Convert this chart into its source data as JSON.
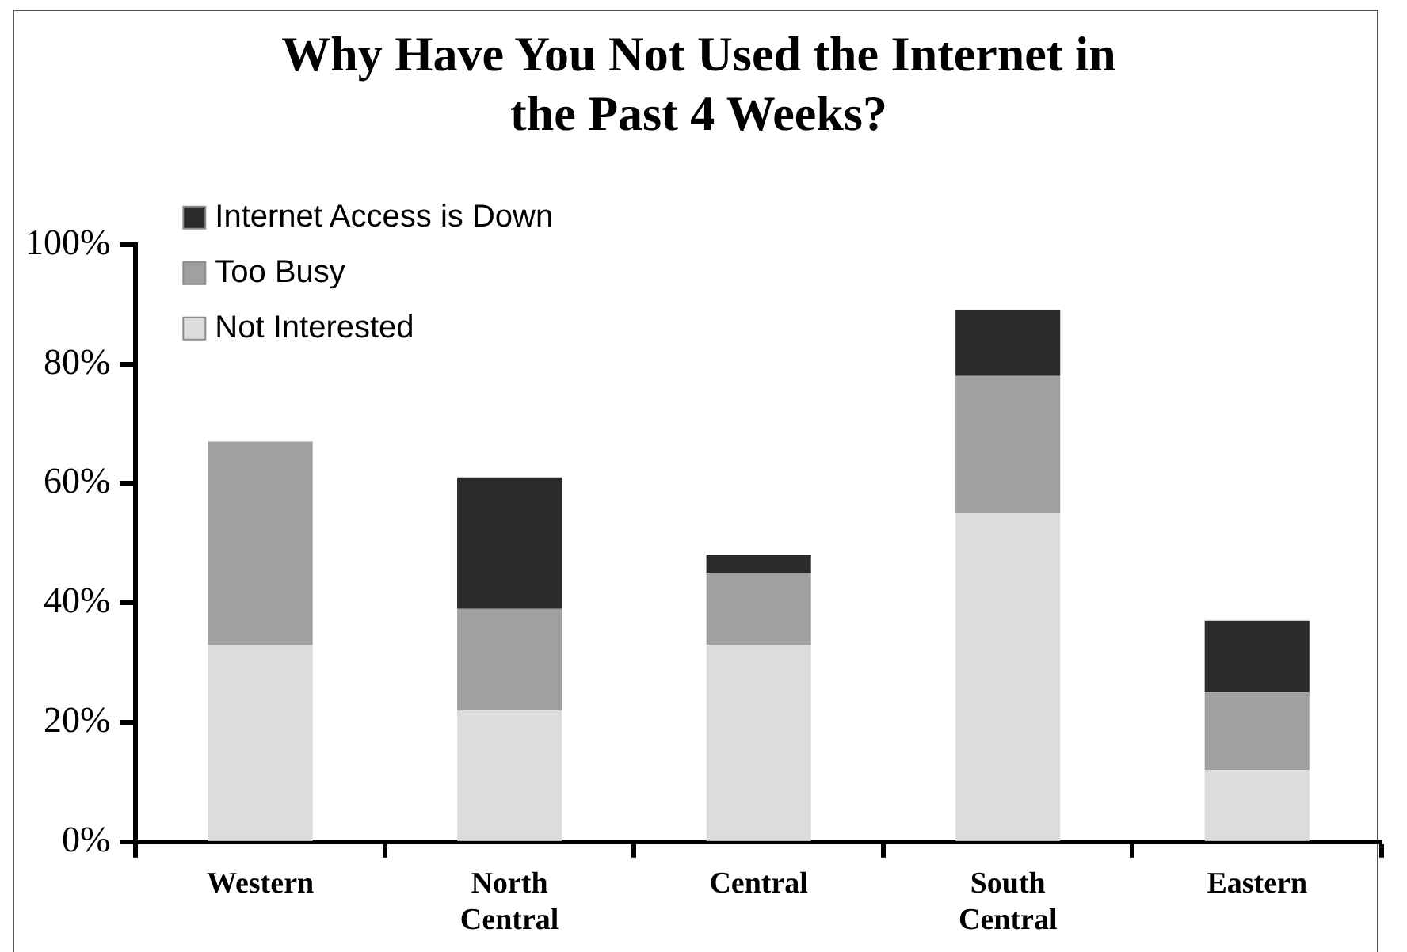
{
  "chart_data": {
    "type": "bar",
    "title": "Why Have You Not Used the Internet in the Past 4 Weeks?",
    "categories": [
      "Western",
      "North Central",
      "Central",
      "South Central",
      "Eastern"
    ],
    "stacked": true,
    "ylim": [
      0,
      100
    ],
    "yticks": [
      {
        "value": 0,
        "label": "0%"
      },
      {
        "value": 20,
        "label": "20%"
      },
      {
        "value": 40,
        "label": "40%"
      },
      {
        "value": 60,
        "label": "60%"
      },
      {
        "value": 80,
        "label": "80%"
      },
      {
        "value": 100,
        "label": "100%"
      }
    ],
    "grid": false,
    "legend": "top left",
    "series": [
      {
        "name": "Not Interested",
        "color": "#dcdcdc",
        "values": [
          33,
          22,
          33,
          55,
          12
        ]
      },
      {
        "name": "Too Busy",
        "color": "#a0a0a0",
        "values": [
          34,
          17,
          12,
          23,
          13
        ]
      },
      {
        "name": "Internet Access is Down",
        "color": "#2a2a2a",
        "values": [
          0,
          22,
          3,
          11,
          12
        ]
      }
    ]
  }
}
